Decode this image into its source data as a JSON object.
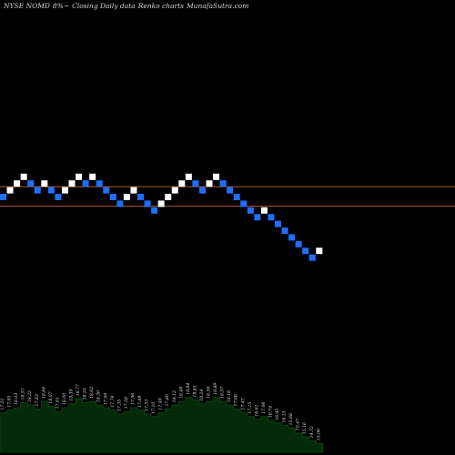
{
  "header": {
    "ticker": "NYSE NOMD",
    "change": "8%~",
    "description": "Closing Daily data",
    "chart_kind": "Renko charts",
    "site": "MunafaSutra.com"
  },
  "colors": {
    "background": "#000000",
    "up_brick": "#ffffff",
    "down_brick": "#1e6fff",
    "level_line": "#b0582a",
    "volume_fill": "#052a09",
    "volume_edge": "#0d4a14"
  },
  "chart_data": {
    "type": "renko",
    "title": "NYSE NOMD 8%~ Closing Daily data Renko charts MunafaSutra.com",
    "bricks": [
      {
        "step": 0,
        "level": 0,
        "dir": "down"
      },
      {
        "step": 1,
        "level": 1,
        "dir": "up"
      },
      {
        "step": 2,
        "level": 2,
        "dir": "up"
      },
      {
        "step": 3,
        "level": 3,
        "dir": "up"
      },
      {
        "step": 4,
        "level": 2,
        "dir": "down"
      },
      {
        "step": 5,
        "level": 1,
        "dir": "down"
      },
      {
        "step": 6,
        "level": 2,
        "dir": "up"
      },
      {
        "step": 7,
        "level": 1,
        "dir": "down"
      },
      {
        "step": 8,
        "level": 0,
        "dir": "down"
      },
      {
        "step": 9,
        "level": 1,
        "dir": "up"
      },
      {
        "step": 10,
        "level": 2,
        "dir": "up"
      },
      {
        "step": 11,
        "level": 3,
        "dir": "up"
      },
      {
        "step": 12,
        "level": 2,
        "dir": "down"
      },
      {
        "step": 13,
        "level": 3,
        "dir": "up"
      },
      {
        "step": 14,
        "level": 2,
        "dir": "down"
      },
      {
        "step": 15,
        "level": 1,
        "dir": "down"
      },
      {
        "step": 16,
        "level": 0,
        "dir": "down"
      },
      {
        "step": 17,
        "level": -1,
        "dir": "down"
      },
      {
        "step": 18,
        "level": 0,
        "dir": "up"
      },
      {
        "step": 19,
        "level": 1,
        "dir": "up"
      },
      {
        "step": 20,
        "level": 0,
        "dir": "down"
      },
      {
        "step": 21,
        "level": -1,
        "dir": "down"
      },
      {
        "step": 22,
        "level": -2,
        "dir": "down"
      },
      {
        "step": 23,
        "level": -1,
        "dir": "up"
      },
      {
        "step": 24,
        "level": 0,
        "dir": "up"
      },
      {
        "step": 25,
        "level": 1,
        "dir": "up"
      },
      {
        "step": 26,
        "level": 2,
        "dir": "up"
      },
      {
        "step": 27,
        "level": 3,
        "dir": "up"
      },
      {
        "step": 28,
        "level": 2,
        "dir": "down"
      },
      {
        "step": 29,
        "level": 1,
        "dir": "down"
      },
      {
        "step": 30,
        "level": 2,
        "dir": "up"
      },
      {
        "step": 31,
        "level": 3,
        "dir": "up"
      },
      {
        "step": 32,
        "level": 2,
        "dir": "down"
      },
      {
        "step": 33,
        "level": 1,
        "dir": "down"
      },
      {
        "step": 34,
        "level": 0,
        "dir": "down"
      },
      {
        "step": 35,
        "level": -1,
        "dir": "down"
      },
      {
        "step": 36,
        "level": -2,
        "dir": "down"
      },
      {
        "step": 37,
        "level": -3,
        "dir": "down"
      },
      {
        "step": 38,
        "level": -2,
        "dir": "up"
      },
      {
        "step": 39,
        "level": -3,
        "dir": "down"
      },
      {
        "step": 40,
        "level": -4,
        "dir": "down"
      },
      {
        "step": 41,
        "level": -5,
        "dir": "down"
      },
      {
        "step": 42,
        "level": -6,
        "dir": "down"
      },
      {
        "step": 43,
        "level": -7,
        "dir": "down"
      },
      {
        "step": 44,
        "level": -8,
        "dir": "down"
      },
      {
        "step": 45,
        "level": -9,
        "dir": "down"
      },
      {
        "step": 46,
        "level": -8,
        "dir": "up"
      }
    ],
    "reference_levels": [
      1.6,
      -1.3
    ],
    "volume": {
      "levels": [
        0.62,
        0.66,
        0.7,
        0.78,
        0.74,
        0.68,
        0.8,
        0.72,
        0.64,
        0.7,
        0.76,
        0.84,
        0.78,
        0.8,
        0.74,
        0.7,
        0.66,
        0.6,
        0.64,
        0.7,
        0.66,
        0.6,
        0.56,
        0.62,
        0.68,
        0.74,
        0.8,
        0.86,
        0.82,
        0.76,
        0.8,
        0.86,
        0.8,
        0.74,
        0.68,
        0.62,
        0.56,
        0.52,
        0.56,
        0.5,
        0.46,
        0.42,
        0.38,
        0.3,
        0.24,
        0.18,
        0.14
      ],
      "labels": [
        "17.51",
        "17.85",
        "18.03",
        "18.51",
        "18.22",
        "17.83",
        "18.64",
        "18.07",
        "17.61",
        "18.00",
        "18.39",
        "18.77",
        "18.55",
        "18.62",
        "18.30",
        "17.99",
        "17.74",
        "17.35",
        "17.58",
        "17.96",
        "17.69",
        "17.33",
        "17.10",
        "17.49",
        "17.80",
        "18.12",
        "18.48",
        "18.84",
        "18.63",
        "18.24",
        "18.59",
        "18.89",
        "18.57",
        "18.18",
        "17.86",
        "17.47",
        "17.15",
        "16.81",
        "17.06",
        "16.74",
        "16.42",
        "16.15",
        "15.88",
        "15.47",
        "15.16",
        "14.72",
        "15.06"
      ]
    }
  }
}
